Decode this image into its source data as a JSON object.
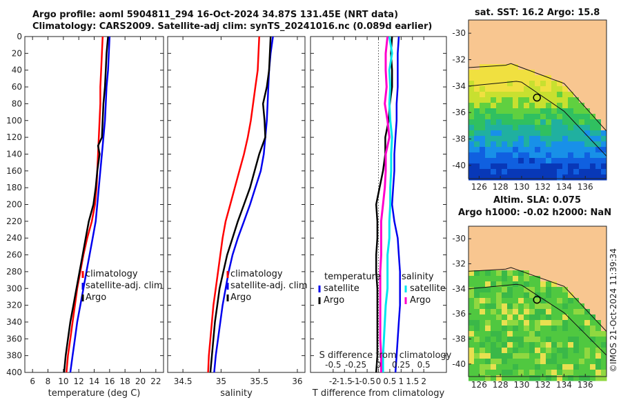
{
  "titles": {
    "line1": "Argo profile: aoml 5904811_294 16-Oct-2024 34.87S 131.45E (NRT data)",
    "line2": "Climatology: CARS2009. Satellite-adj clim: synTS_20241016.nc (0.089d earlier)",
    "map1": "sat. SST: 16.2 Argo: 15.8",
    "map2a": "Altim. SLA: 0.075",
    "map2b": "Argo h1000: -0.02 h2000: NaN"
  },
  "credit": "©IMOS 21-Oct-2024 11:39:34",
  "colors": {
    "climatology": "#ff0000",
    "satellite": "#0000ee",
    "argo": "#000000",
    "sat_salt": "#00e5ee",
    "argo_salt": "#ff00cc",
    "land": "#f8c690"
  },
  "chart_data": [
    {
      "type": "line",
      "panel": "temperature",
      "xlabel": "temperature (deg C)",
      "ylabel": "",
      "xlim": [
        5,
        23
      ],
      "ylim": [
        400,
        0
      ],
      "xticks": [
        "6",
        "8",
        "10",
        "12",
        "14",
        "16",
        "18",
        "20",
        "22"
      ],
      "xtick_values": [
        6,
        8,
        10,
        12,
        14,
        16,
        18,
        20,
        22
      ],
      "yticks": [
        "0",
        "20",
        "40",
        "60",
        "80",
        "100",
        "120",
        "140",
        "160",
        "180",
        "200",
        "220",
        "240",
        "260",
        "280",
        "300",
        "320",
        "340",
        "360",
        "380",
        "400"
      ],
      "ytick_values": [
        0,
        20,
        40,
        60,
        80,
        100,
        120,
        140,
        160,
        180,
        200,
        220,
        240,
        260,
        280,
        300,
        320,
        340,
        360,
        380,
        400
      ],
      "legend": [
        "climatology",
        "satellite-adj. clim",
        "Argo"
      ],
      "series": [
        {
          "name": "climatology",
          "depth": [
            0,
            20,
            40,
            60,
            80,
            100,
            120,
            140,
            160,
            180,
            200,
            220,
            240,
            260,
            280,
            300,
            320,
            340,
            360,
            380,
            400
          ],
          "values": [
            15.1,
            15.0,
            14.9,
            14.8,
            14.8,
            14.7,
            14.6,
            14.5,
            14.4,
            14.3,
            14.1,
            13.7,
            13.1,
            12.6,
            12.2,
            11.8,
            11.5,
            11.2,
            10.9,
            10.6,
            10.4
          ]
        },
        {
          "name": "satellite-adj. clim",
          "depth": [
            0,
            20,
            40,
            60,
            80,
            100,
            120,
            140,
            160,
            180,
            200,
            220,
            240,
            260,
            280,
            300,
            320,
            340,
            360,
            380,
            400
          ],
          "values": [
            16.0,
            15.9,
            15.8,
            15.6,
            15.5,
            15.4,
            15.2,
            15.0,
            14.8,
            14.6,
            14.4,
            14.2,
            13.8,
            13.4,
            13.0,
            12.6,
            12.2,
            11.8,
            11.5,
            11.2,
            10.9
          ]
        },
        {
          "name": "Argo",
          "depth": [
            0,
            20,
            40,
            60,
            80,
            100,
            120,
            130,
            140,
            160,
            180,
            200,
            220,
            240,
            260,
            280,
            300,
            320,
            340,
            360,
            380,
            400
          ],
          "values": [
            15.8,
            15.6,
            15.5,
            15.4,
            15.2,
            15.1,
            15.0,
            14.5,
            14.7,
            14.4,
            14.2,
            13.9,
            13.3,
            12.9,
            12.5,
            12.1,
            11.7,
            11.3,
            10.9,
            10.6,
            10.3,
            10.1
          ]
        }
      ]
    },
    {
      "type": "line",
      "panel": "salinity",
      "xlabel": "salinity",
      "xlim": [
        34.3,
        36.1
      ],
      "ylim": [
        400,
        0
      ],
      "xticks": [
        "34.5",
        "35",
        "35.5",
        "36"
      ],
      "xtick_values": [
        34.5,
        35,
        35.5,
        36
      ],
      "legend": [
        "climatology",
        "satellite-adj. clim",
        "Argo"
      ],
      "series": [
        {
          "name": "climatology",
          "depth": [
            0,
            20,
            40,
            60,
            80,
            100,
            120,
            140,
            160,
            180,
            200,
            220,
            240,
            260,
            280,
            300,
            320,
            340,
            360,
            380,
            400
          ],
          "values": [
            35.5,
            35.49,
            35.48,
            35.45,
            35.42,
            35.39,
            35.35,
            35.3,
            35.24,
            35.18,
            35.12,
            35.06,
            35.02,
            34.99,
            34.96,
            34.93,
            34.9,
            34.88,
            34.86,
            34.84,
            34.83
          ]
        },
        {
          "name": "satellite-adj. clim",
          "depth": [
            0,
            20,
            40,
            60,
            80,
            100,
            120,
            140,
            160,
            180,
            200,
            220,
            240,
            260,
            280,
            300,
            320,
            340,
            360,
            380,
            400
          ],
          "values": [
            35.68,
            35.65,
            35.63,
            35.62,
            35.61,
            35.6,
            35.58,
            35.56,
            35.52,
            35.45,
            35.38,
            35.3,
            35.22,
            35.15,
            35.1,
            35.06,
            35.02,
            34.99,
            34.96,
            34.93,
            34.91
          ]
        },
        {
          "name": "Argo",
          "depth": [
            0,
            20,
            40,
            60,
            80,
            100,
            120,
            140,
            160,
            180,
            200,
            220,
            240,
            260,
            280,
            300,
            320,
            340,
            360,
            380,
            400
          ],
          "values": [
            35.65,
            35.64,
            35.63,
            35.6,
            35.55,
            35.57,
            35.58,
            35.5,
            35.44,
            35.38,
            35.3,
            35.22,
            35.15,
            35.08,
            35.03,
            34.98,
            34.95,
            34.92,
            34.9,
            34.88,
            34.86
          ]
        }
      ]
    },
    {
      "type": "line",
      "panel": "difference",
      "xlabel": "T difference from climatology",
      "top_axis_label": "S difference from climatology",
      "xlim": [
        -3,
        3
      ],
      "ylim": [
        400,
        0
      ],
      "xticks": [
        "-2",
        "-1.5",
        "-1",
        "-0.5",
        "0",
        "0.5",
        "1",
        "1.5",
        "2"
      ],
      "xtick_values": [
        -2,
        -1.5,
        -1,
        -0.5,
        0,
        0.5,
        1,
        1.5,
        2
      ],
      "s_ticks": [
        "-0.5",
        "-0.25",
        "0",
        "0.25",
        "0.5"
      ],
      "s_tick_values": [
        -0.5,
        -0.25,
        0,
        0.25,
        0.5
      ],
      "legend_temperature": {
        "title": "temperature",
        "entries": [
          "satellite",
          "Argo"
        ]
      },
      "legend_salinity": {
        "title": "salinity",
        "entries": [
          "satellite",
          "Argo"
        ]
      },
      "series": [
        {
          "name": "temperature satellite",
          "depth": [
            0,
            20,
            40,
            60,
            80,
            100,
            120,
            140,
            160,
            180,
            200,
            220,
            240,
            260,
            280,
            300,
            320,
            340,
            360,
            380,
            400
          ],
          "values": [
            0.9,
            0.85,
            0.85,
            0.85,
            0.8,
            0.8,
            0.75,
            0.7,
            0.7,
            0.65,
            0.6,
            0.7,
            0.85,
            0.9,
            0.95,
            0.95,
            0.95,
            0.9,
            0.85,
            0.8,
            0.75
          ]
        },
        {
          "name": "temperature Argo",
          "depth": [
            0,
            20,
            40,
            60,
            80,
            100,
            120,
            140,
            160,
            180,
            200,
            220,
            240,
            260,
            280,
            300,
            320,
            340,
            360,
            380,
            400
          ],
          "values": [
            0.6,
            0.55,
            0.6,
            0.6,
            0.5,
            0.45,
            0.3,
            0.3,
            0.2,
            0.05,
            -0.1,
            -0.05,
            -0.05,
            -0.1,
            -0.1,
            -0.05,
            -0.05,
            -0.05,
            -0.05,
            -0.05,
            -0.1
          ]
        },
        {
          "name": "salinity satellite",
          "depth": [
            0,
            20,
            40,
            60,
            80,
            100,
            120,
            140,
            160,
            180,
            200,
            220,
            240,
            260,
            280,
            300,
            320,
            340,
            360,
            380,
            400
          ],
          "values": [
            0.12,
            0.15,
            0.12,
            0.13,
            0.12,
            0.13,
            0.15,
            0.14,
            0.14,
            0.13,
            0.13,
            0.12,
            0.12,
            0.1,
            0.1,
            0.1,
            0.08,
            0.07,
            0.06,
            0.05,
            0.05
          ]
        },
        {
          "name": "salinity Argo",
          "depth": [
            0,
            20,
            40,
            60,
            80,
            100,
            120,
            140,
            160,
            180,
            200,
            220,
            240,
            260,
            280,
            300,
            320,
            340,
            360,
            380,
            400
          ],
          "values": [
            0.1,
            0.08,
            0.08,
            0.09,
            0.07,
            0.1,
            0.12,
            0.08,
            0.08,
            0.07,
            0.05,
            0.03,
            0.03,
            0.03,
            0.02,
            0.02,
            0.02,
            0.02,
            0.02,
            0.03,
            0.03
          ]
        }
      ]
    },
    {
      "type": "heatmap",
      "panel": "sat. SST map",
      "xticks": [
        "126",
        "128",
        "130",
        "132",
        "134",
        "136"
      ],
      "yticks": [
        "-30",
        "-32",
        "-34",
        "-36",
        "-38",
        "-40"
      ],
      "xlim": [
        125,
        138
      ],
      "ylim": [
        -41,
        -29
      ],
      "float_position": {
        "lon": 131.45,
        "lat": -34.87
      }
    },
    {
      "type": "heatmap",
      "panel": "altimetry SLA map",
      "xticks": [
        "126",
        "128",
        "130",
        "132",
        "134",
        "136"
      ],
      "yticks": [
        "-30",
        "-32",
        "-34",
        "-36",
        "-38",
        "-40"
      ],
      "xlim": [
        125,
        138
      ],
      "ylim": [
        -41,
        -29
      ],
      "float_position": {
        "lon": 131.45,
        "lat": -34.87
      }
    }
  ]
}
